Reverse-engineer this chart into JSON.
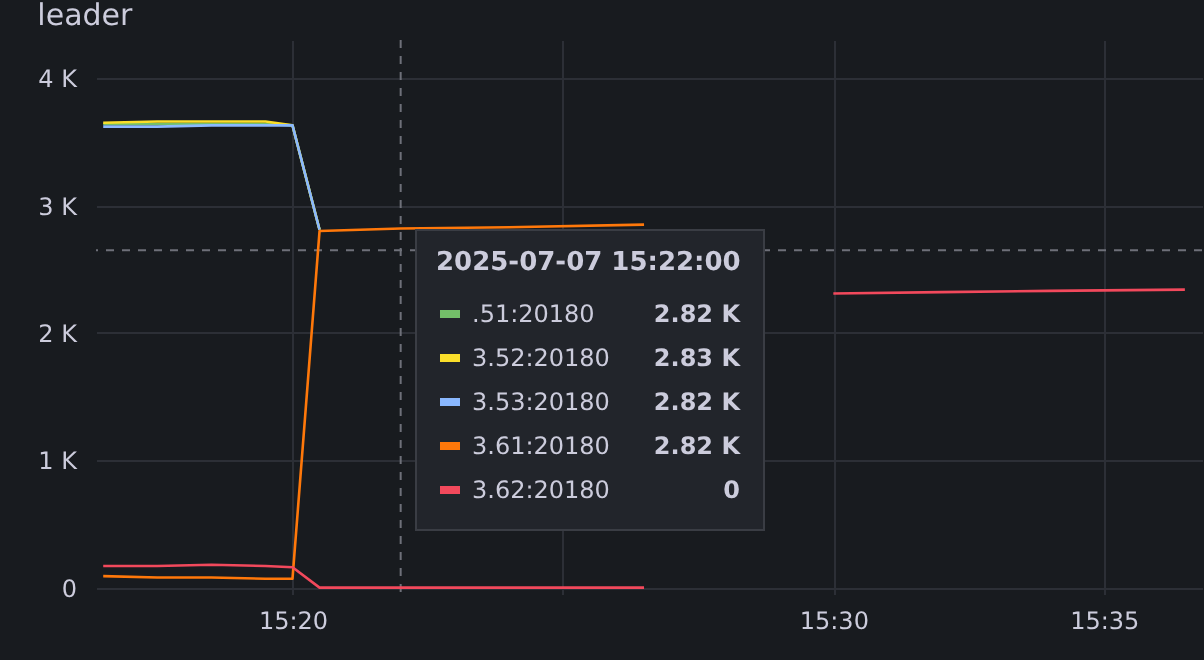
{
  "chart_data": {
    "type": "line",
    "title": "leader",
    "legend_title": "2025-07-07 15:22:00",
    "x": [
      "2025-07-07T15:16:30",
      "2025-07-07T15:17:30",
      "2025-07-07T15:18:30",
      "2025-07-07T15:19:30",
      "2025-07-07T15:20:00",
      "2025-07-07T15:20:30",
      "2025-07-07T15:22:00",
      "2025-07-07T15:24:00",
      "2025-07-07T15:26:30",
      "2025-07-07T15:27:00",
      "2025-07-07T15:28:00",
      "2025-07-07T15:30:00",
      "2025-07-07T15:32:00",
      "2025-07-07T15:34:00",
      "2025-07-07T15:36:30"
    ],
    "series": [
      {
        "name": ".51:20180",
        "color": "#73bf69",
        "values": [
          3640,
          3640,
          3640,
          3640,
          3630,
          2810,
          null,
          null,
          null,
          null,
          null,
          null,
          null,
          null,
          null
        ]
      },
      {
        "name": "3.52:20180",
        "color": "#fade2a",
        "values": [
          3650,
          3660,
          3660,
          3660,
          3630,
          2810,
          null,
          null,
          null,
          null,
          null,
          null,
          null,
          null,
          null
        ]
      },
      {
        "name": "3.53:20180",
        "color": "#8ab8ff",
        "values": [
          3620,
          3620,
          3630,
          3630,
          3630,
          2810,
          null,
          null,
          null,
          null,
          null,
          null,
          null,
          null,
          null
        ]
      },
      {
        "name": "3.61:20180",
        "color": "#ff780a",
        "values": [
          90,
          80,
          80,
          70,
          70,
          2800,
          2820,
          2830,
          2850,
          null,
          null,
          null,
          null,
          null,
          null
        ]
      },
      {
        "name": "3.62:20180",
        "color": "#f2495c",
        "values": [
          170,
          170,
          180,
          170,
          160,
          0,
          0,
          0,
          0,
          null,
          null,
          2310,
          2320,
          2330,
          2340
        ]
      }
    ],
    "annotations": [
      "2.82 K",
      "2.83 K",
      "2.82 K",
      "2.82 K",
      "0"
    ],
    "xlim": [
      "2025-07-07T15:16:22",
      "2025-07-07T15:36:49"
    ],
    "xticks": [
      {
        "value": "2025-07-07T15:20",
        "label": "15:20"
      },
      {
        "value": "2025-07-07T15:25",
        "label": null
      },
      {
        "value": "2025-07-07T15:30",
        "label": "15:30"
      },
      {
        "value": "2025-07-07T15:35",
        "label": "15:35"
      }
    ],
    "ylim": [
      -50,
      4300
    ],
    "yticks": [
      {
        "value": 0,
        "label": "0"
      },
      {
        "value": 1000,
        "label": "1 K"
      },
      {
        "value": 2000,
        "label": "2 K"
      },
      {
        "value": 3000,
        "label": "3 K"
      },
      {
        "value": 4000,
        "label": "4 K"
      }
    ],
    "ref_lines": [
      {
        "axis": "x",
        "value": "2025-07-07T15:22",
        "label": null,
        "line_style": "dashed"
      },
      {
        "axis": "y",
        "value": 2650,
        "label": null,
        "line_style": "dashed"
      }
    ],
    "grid": true,
    "legend": "bottom",
    "marker": "none",
    "line_style": "solid"
  }
}
